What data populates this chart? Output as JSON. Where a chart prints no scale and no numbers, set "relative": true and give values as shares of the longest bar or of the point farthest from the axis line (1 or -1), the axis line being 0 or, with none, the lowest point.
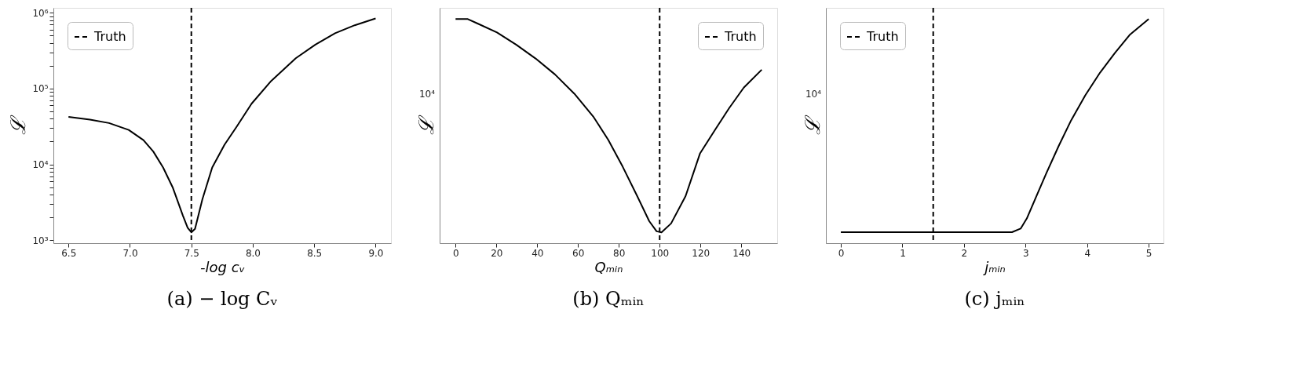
{
  "chart_data": [
    {
      "type": "line",
      "title": "(a) − log Cᵥ",
      "xlabel": "-log cᵥ",
      "ylabel": "ℒ",
      "log": "y",
      "grid": false,
      "legend": "top left",
      "line_style": "solid",
      "marker": "none",
      "x": [
        6.5,
        6.675,
        6.83,
        6.99,
        7.11,
        7.19,
        7.27,
        7.35,
        7.43,
        7.47,
        7.5,
        7.53,
        7.59,
        7.67,
        7.77,
        7.87,
        7.99,
        8.15,
        8.35,
        8.51,
        8.67,
        8.83,
        9.0
      ],
      "series": [
        {
          "color": "#000000",
          "values": [
            42300,
            38900,
            35100,
            28500,
            20900,
            14800,
            9100,
            4900,
            2140,
            1460,
            1270,
            1410,
            3470,
            9100,
            18200,
            31600,
            63100,
            126000,
            251000,
            380000,
            537000,
            684000,
            841000
          ]
        }
      ],
      "ref_lines": [
        {
          "axis": "x",
          "value": 7.5,
          "label": "Truth",
          "color": "#000000",
          "line_style": "dashed"
        }
      ],
      "xlim": [
        6.377,
        9.125
      ],
      "ylim": [
        915,
        1160000
      ],
      "xticks": [
        6.5,
        {
          "value": 7,
          "label": "7.0"
        },
        7.5,
        {
          "value": 8,
          "label": "8.0"
        },
        8.5,
        {
          "value": 9,
          "label": "9.0"
        }
      ],
      "yticks": [
        {
          "value": 1000,
          "label": "10³"
        },
        {
          "value": 2000,
          "label": null
        },
        {
          "value": 3000,
          "label": null
        },
        {
          "value": 4000,
          "label": null
        },
        {
          "value": 5000,
          "label": null
        },
        {
          "value": 6000,
          "label": null
        },
        {
          "value": 7000,
          "label": null
        },
        {
          "value": 8000,
          "label": null
        },
        {
          "value": 9000,
          "label": null
        },
        {
          "value": 10000,
          "label": "10⁴"
        },
        {
          "value": 20000,
          "label": null
        },
        {
          "value": 30000,
          "label": null
        },
        {
          "value": 40000,
          "label": null
        },
        {
          "value": 50000,
          "label": null
        },
        {
          "value": 60000,
          "label": null
        },
        {
          "value": 70000,
          "label": null
        },
        {
          "value": 80000,
          "label": null
        },
        {
          "value": 90000,
          "label": null
        },
        {
          "value": 100000,
          "label": "10⁵"
        },
        {
          "value": 200000,
          "label": null
        },
        {
          "value": 300000,
          "label": null
        },
        {
          "value": 400000,
          "label": null
        },
        {
          "value": 500000,
          "label": null
        },
        {
          "value": 600000,
          "label": null
        },
        {
          "value": 700000,
          "label": null
        },
        {
          "value": 800000,
          "label": null
        },
        {
          "value": 900000,
          "label": null
        },
        {
          "value": 1000000,
          "label": "10⁶"
        }
      ]
    },
    {
      "type": "line",
      "title": "(b) Qₘᵢₙ",
      "xlabel": "Qₘᵢₙ",
      "ylabel": "ℒ",
      "grid": false,
      "legend": "top right",
      "line_style": "solid",
      "marker": "none",
      "x": [
        0,
        6,
        10.8,
        20.3,
        29.8,
        39.2,
        48.7,
        58.2,
        67.7,
        74.8,
        81.9,
        89,
        94.9,
        98.5,
        100.9,
        105.6,
        112.7,
        119.8,
        126.9,
        134,
        141.2,
        150
      ],
      "series": [
        {
          "color": "#000000",
          "values": [
            1,
            1,
            0.98,
            0.94,
            0.885,
            0.824,
            0.753,
            0.667,
            0.562,
            0.461,
            0.341,
            0.21,
            0.098,
            0.053,
            0.048,
            0.088,
            0.21,
            0.401,
            0.502,
            0.602,
            0.694,
            0.774
          ]
        }
      ],
      "ref_lines": [
        {
          "axis": "x",
          "value": 100,
          "label": "Truth",
          "color": "#000000",
          "line_style": "dashed"
        }
      ],
      "xlim": [
        -7.8,
        157.6
      ],
      "relative": true,
      "annotations": [
        "10⁴"
      ],
      "xticks": [
        0,
        20,
        40,
        60,
        80,
        100,
        120,
        140
      ]
    },
    {
      "type": "line",
      "title": "(c) jₘᵢₙ",
      "xlabel": "jₘᵢₙ",
      "ylabel": "ℒ",
      "grid": false,
      "legend": "top left",
      "line_style": "solid",
      "marker": "none",
      "x": [
        0,
        1,
        2,
        2.78,
        2.92,
        3.02,
        3.18,
        3.34,
        3.54,
        3.74,
        3.97,
        4.21,
        4.45,
        4.69,
        5.0
      ],
      "series": [
        {
          "color": "#000000",
          "values": [
            0.049,
            0.049,
            0.049,
            0.049,
            0.065,
            0.11,
            0.212,
            0.314,
            0.435,
            0.548,
            0.66,
            0.761,
            0.848,
            0.929,
            1
          ]
        }
      ],
      "ref_lines": [
        {
          "axis": "x",
          "value": 1.5,
          "label": "Truth",
          "color": "#000000",
          "line_style": "dashed"
        }
      ],
      "xlim": [
        -0.243,
        5.24
      ],
      "relative": true,
      "annotations": [
        "10⁴"
      ],
      "xticks": [
        0,
        1,
        2,
        3,
        4,
        5
      ]
    }
  ]
}
